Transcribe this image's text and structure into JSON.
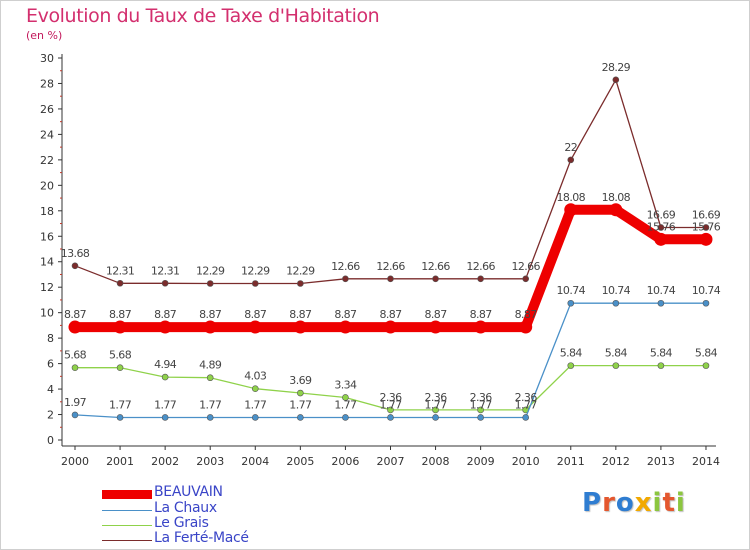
{
  "title": "Evolution du Taux de Taxe d'Habitation",
  "unit": "(en %)",
  "logo": {
    "text": "Proxiti",
    "colors": [
      "#2f7dd1",
      "#e4572e",
      "#2f7dd1",
      "#f2a900",
      "#8cc63f",
      "#e4572e",
      "#8cc63f"
    ]
  },
  "chart_data": {
    "type": "line",
    "x": [
      "2000",
      "2001",
      "2002",
      "2003",
      "2004",
      "2005",
      "2006",
      "2007",
      "2008",
      "2009",
      "2010",
      "2011",
      "2012",
      "2013",
      "2014"
    ],
    "ylim": [
      0,
      30
    ],
    "yticks": [
      "0",
      "2",
      "4",
      "6",
      "8",
      "10",
      "12",
      "14",
      "16",
      "18",
      "20",
      "22",
      "24",
      "26",
      "28",
      "30"
    ],
    "grid": false,
    "legend": "bottom-left",
    "series": [
      {
        "name": "BEAUVAIN",
        "color": "#ee0000",
        "thick": true,
        "values": [
          8.87,
          8.87,
          8.87,
          8.87,
          8.87,
          8.87,
          8.87,
          8.87,
          8.87,
          8.87,
          8.87,
          18.08,
          18.08,
          15.76,
          15.76
        ],
        "labels": [
          "8.87",
          "8.87",
          "8.87",
          "8.87",
          "8.87",
          "8.87",
          "8.87",
          "8.87",
          "8.87",
          "8.87",
          "8.87",
          "18.08",
          "18.08",
          "15.76",
          "15.76"
        ]
      },
      {
        "name": "La Chaux",
        "color": "#4a90c8",
        "thick": false,
        "values": [
          1.97,
          1.77,
          1.77,
          1.77,
          1.77,
          1.77,
          1.77,
          1.77,
          1.77,
          1.77,
          1.77,
          10.74,
          10.74,
          10.74,
          10.74
        ],
        "labels": [
          "1.97",
          "1.77",
          "1.77",
          "1.77",
          "1.77",
          "1.77",
          "1.77",
          "1.77",
          "1.77",
          "1.77",
          "1.77",
          "10.74",
          "10.74",
          "10.74",
          "10.74"
        ]
      },
      {
        "name": "Le Grais",
        "color": "#8fd24a",
        "thick": false,
        "values": [
          5.68,
          5.68,
          4.94,
          4.89,
          4.03,
          3.69,
          3.34,
          2.36,
          2.36,
          2.36,
          2.36,
          5.84,
          5.84,
          5.84,
          5.84
        ],
        "labels": [
          "5.68",
          "5.68",
          "4.94",
          "4.89",
          "4.03",
          "3.69",
          "3.34",
          "2.36",
          "2.36",
          "2.36",
          "2.36",
          "5.84",
          "5.84",
          "5.84",
          "5.84"
        ]
      },
      {
        "name": "La Ferté-Macé",
        "color": "#7b2c2c",
        "thick": false,
        "values": [
          13.68,
          12.31,
          12.31,
          12.29,
          12.29,
          12.29,
          12.66,
          12.66,
          12.66,
          12.66,
          12.66,
          22,
          28.29,
          16.69,
          16.69
        ],
        "labels": [
          "13.68",
          "12.31",
          "12.31",
          "12.29",
          "12.29",
          "12.29",
          "12.66",
          "12.66",
          "12.66",
          "12.66",
          "12.66",
          "22",
          "28.29",
          "16.69",
          "16.69"
        ]
      }
    ]
  }
}
